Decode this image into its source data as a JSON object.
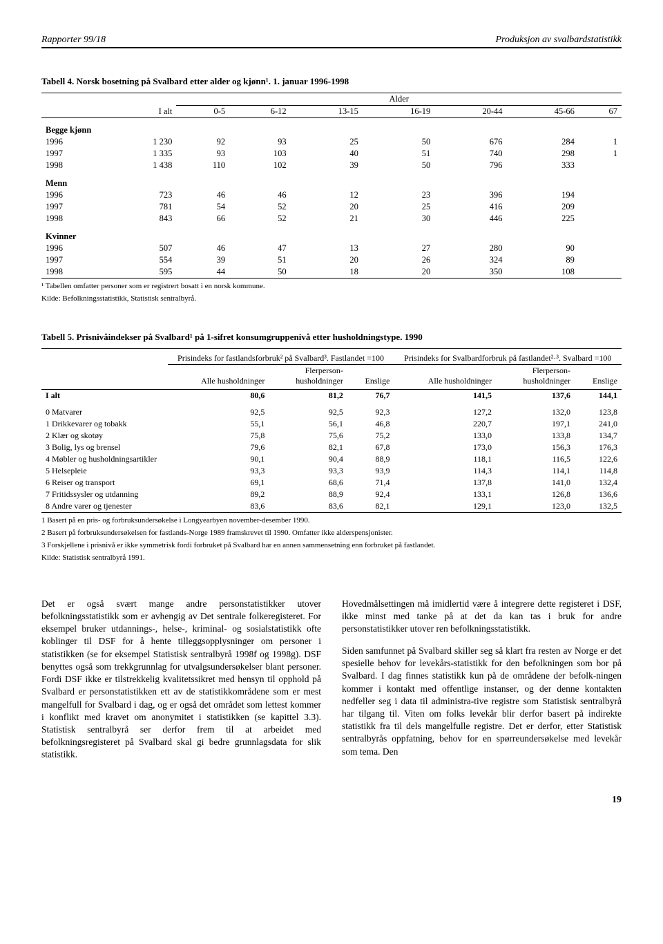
{
  "header": {
    "left": "Rapporter 99/18",
    "right": "Produksjon av svalbardstatistikk"
  },
  "table4": {
    "title": "Tabell 4. Norsk bosetning på Svalbard etter alder og kjønn¹. 1. januar 1996-1998",
    "supertitle": "Alder",
    "cols": [
      "I alt",
      "0-5",
      "6-12",
      "13-15",
      "16-19",
      "20-44",
      "45-66",
      "67"
    ],
    "groups": [
      {
        "name": "Begge kjønn",
        "rows": [
          {
            "y": "1996",
            "v": [
              "1 230",
              "92",
              "93",
              "25",
              "50",
              "676",
              "284",
              "1"
            ]
          },
          {
            "y": "1997",
            "v": [
              "1 335",
              "93",
              "103",
              "40",
              "51",
              "740",
              "298",
              "1"
            ]
          },
          {
            "y": "1998",
            "v": [
              "1 438",
              "110",
              "102",
              "39",
              "50",
              "796",
              "333",
              ""
            ]
          }
        ]
      },
      {
        "name": "Menn",
        "rows": [
          {
            "y": "1996",
            "v": [
              "723",
              "46",
              "46",
              "12",
              "23",
              "396",
              "194",
              ""
            ]
          },
          {
            "y": "1997",
            "v": [
              "781",
              "54",
              "52",
              "20",
              "25",
              "416",
              "209",
              ""
            ]
          },
          {
            "y": "1998",
            "v": [
              "843",
              "66",
              "52",
              "21",
              "30",
              "446",
              "225",
              ""
            ]
          }
        ]
      },
      {
        "name": "Kvinner",
        "rows": [
          {
            "y": "1996",
            "v": [
              "507",
              "46",
              "47",
              "13",
              "27",
              "280",
              "90",
              ""
            ]
          },
          {
            "y": "1997",
            "v": [
              "554",
              "39",
              "51",
              "20",
              "26",
              "324",
              "89",
              ""
            ]
          },
          {
            "y": "1998",
            "v": [
              "595",
              "44",
              "50",
              "18",
              "20",
              "350",
              "108",
              ""
            ]
          }
        ]
      }
    ],
    "foot1": "¹ Tabellen omfatter personer som er registrert bosatt i en norsk kommune.",
    "foot2": "Kilde: Befolkningsstatistikk, Statistisk sentralbyrå."
  },
  "table5": {
    "title": "Tabell 5. Prisnivåindekser på Svalbard¹ på 1-sifret konsumgruppenivå etter husholdningstype. 1990",
    "span1": "Prisindeks for fastlandsforbruk² på Svalbard³. Fastlandet =100",
    "span2": "Prisindeks for Svalbardforbruk på fastlandet²·³. Svalbard =100",
    "subcols": [
      "Alle husholdninger",
      "Flerperson-husholdninger",
      "Enslige",
      "Alle husholdninger",
      "Flerperson-husholdninger",
      "Enslige"
    ],
    "totalrow": {
      "label": "I alt",
      "v": [
        "80,6",
        "81,2",
        "76,7",
        "141,5",
        "137,6",
        "144,1"
      ]
    },
    "rows": [
      {
        "label": "0 Matvarer",
        "v": [
          "92,5",
          "92,5",
          "92,3",
          "127,2",
          "132,0",
          "123,8"
        ]
      },
      {
        "label": "1 Drikkevarer og tobakk",
        "v": [
          "55,1",
          "56,1",
          "46,8",
          "220,7",
          "197,1",
          "241,0"
        ]
      },
      {
        "label": "2 Klær og skotøy",
        "v": [
          "75,8",
          "75,6",
          "75,2",
          "133,0",
          "133,8",
          "134,7"
        ]
      },
      {
        "label": "3 Bolig, lys og brensel",
        "v": [
          "79,6",
          "82,1",
          "67,8",
          "173,0",
          "156,3",
          "176,3"
        ]
      },
      {
        "label": "4 Møbler og husholdningsartikler",
        "v": [
          "90,1",
          "90,4",
          "88,9",
          "118,1",
          "116,5",
          "122,6"
        ]
      },
      {
        "label": "5 Helsepleie",
        "v": [
          "93,3",
          "93,3",
          "93,9",
          "114,3",
          "114,1",
          "114,8"
        ]
      },
      {
        "label": "6 Reiser og transport",
        "v": [
          "69,1",
          "68,6",
          "71,4",
          "137,8",
          "141,0",
          "132,4"
        ]
      },
      {
        "label": "7 Fritidssysler og utdanning",
        "v": [
          "89,2",
          "88,9",
          "92,4",
          "133,1",
          "126,8",
          "136,6"
        ]
      },
      {
        "label": "8 Andre varer og tjenester",
        "v": [
          "83,6",
          "83,6",
          "82,1",
          "129,1",
          "123,0",
          "132,5"
        ]
      }
    ],
    "foot1": "1 Basert på en pris- og forbruksundersøkelse i Longyearbyen november-desember 1990.",
    "foot2": "2 Basert på forbruksundersøkelsen for fastlands-Norge 1989 framskrevet til 1990. Omfatter ikke alderspensjonister.",
    "foot3": "3 Forskjellene i prisnivå er ikke symmetrisk fordi forbruket på Svalbard har en annen sammensetning enn forbruket på fastlandet.",
    "foot4": "Kilde: Statistisk sentralbyrå 1991."
  },
  "body": {
    "left": "Det er også svært mange andre personstatistikker utover befolkningsstatistikk som er avhengig av Det sentrale folkeregisteret. For eksempel bruker utdannings-, helse-, kriminal- og sosialstatistikk ofte koblinger til DSF for å hente tilleggsopplysninger om personer i statistikken (se for eksempel Statistisk sentralbyrå 1998f og 1998g). DSF benyttes også som trekkgrunnlag for utvalgsundersøkelser blant personer. Fordi DSF ikke er tilstrekkelig kvalitetssikret med hensyn til opphold på Svalbard er personstatistikken ett av de statistikkområdene som er mest mangelfull for Svalbard i dag, og er også det området som lettest kommer i konflikt med kravet om anonymitet i statistikken (se kapittel 3.3). Statistisk sentralbyrå ser derfor frem til at arbeidet med befolkningsregisteret på Svalbard skal gi bedre grunnlagsdata for slik statistikk.",
    "right1": "Hovedmålsettingen må imidlertid være å integrere dette registeret i DSF, ikke minst med tanke på at det da kan tas i bruk for andre personstatistikker utover ren befolkningsstatistikk.",
    "right2": "Siden samfunnet på Svalbard skiller seg så klart fra resten av Norge er det spesielle behov for levekårs-statistikk for den befolkningen som bor på Svalbard. I dag finnes statistikk kun på de områdene der befolk-ningen kommer i kontakt med offentlige instanser, og der denne kontakten nedfeller seg i data til administra-tive registre som Statistisk sentralbyrå har tilgang til. Viten om folks levekår blir derfor basert på indirekte statistikk fra til dels mangelfulle registre. Det er derfor, etter Statistisk sentralbyrås oppfatning, behov for en spørreundersøkelse med levekår som tema. Den"
  },
  "pagenum": "19"
}
